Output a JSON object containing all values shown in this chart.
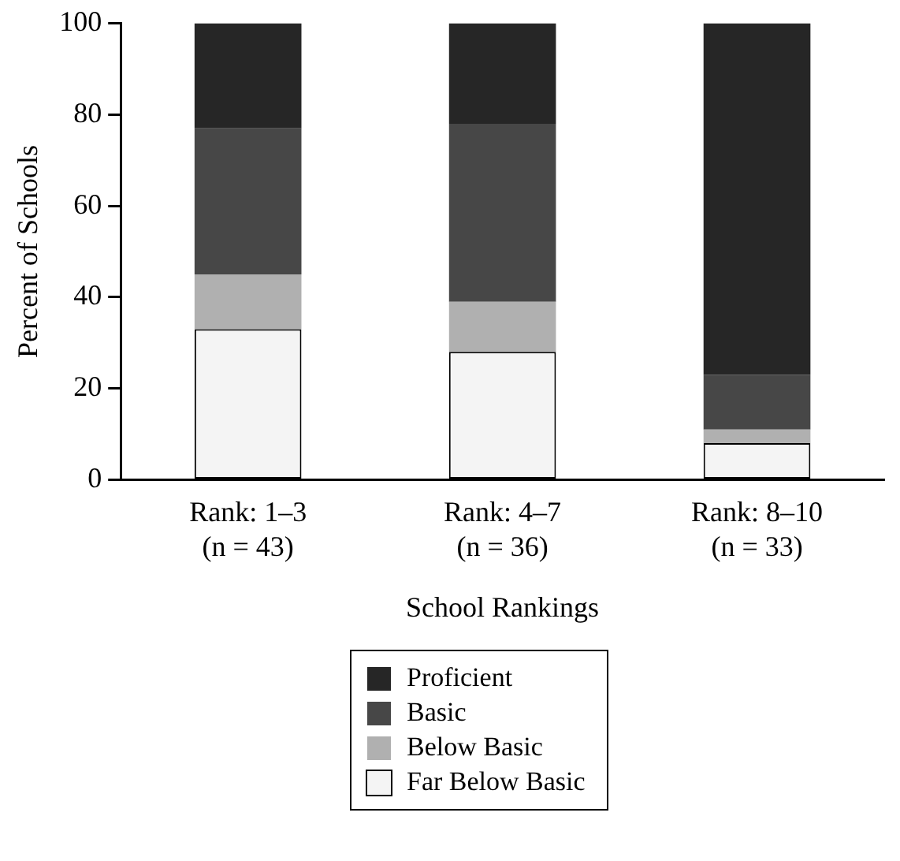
{
  "chart_data": {
    "type": "bar",
    "stacked": true,
    "xlabel": "School Rankings",
    "ylabel": "Percent of Schools",
    "categories": [
      "Rank: 1–3\n(n = 43)",
      "Rank: 4–7\n(n = 36)",
      "Rank: 8–10\n(n = 33)"
    ],
    "series": [
      {
        "name": "Far Below Basic",
        "color": "#f4f4f4",
        "values": [
          33,
          28,
          8
        ]
      },
      {
        "name": "Below Basic",
        "color": "#b0b0b0",
        "values": [
          12,
          11,
          3
        ]
      },
      {
        "name": "Basic",
        "color": "#474747",
        "values": [
          32,
          39,
          12
        ]
      },
      {
        "name": "Proficient",
        "color": "#262626",
        "values": [
          23,
          22,
          77
        ]
      }
    ],
    "ylim": [
      0,
      100
    ],
    "yticks": [
      0,
      20,
      40,
      60,
      80,
      100
    ],
    "grid": false,
    "legend": "bottom"
  }
}
